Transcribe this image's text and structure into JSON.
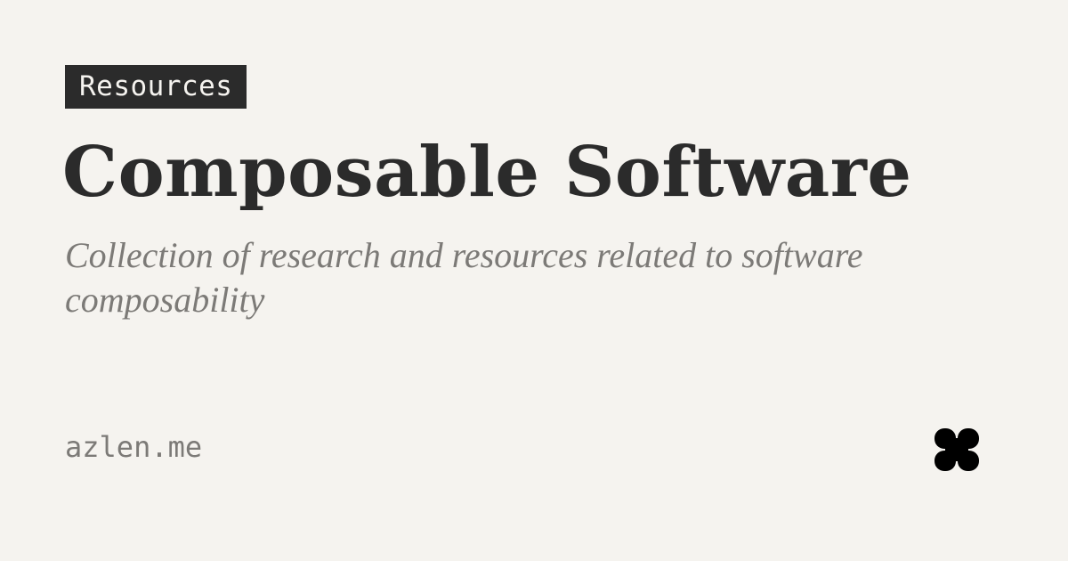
{
  "tag": {
    "label": "Resources"
  },
  "title": "Composable Software",
  "subtitle": "Collection of research and resources related to software composability",
  "footer": {
    "domain": "azlen.me"
  },
  "logo": {
    "icon": "four-petal-clover-icon",
    "color": "#000000"
  },
  "colors": {
    "background": "#f5f3ef",
    "text": "#2b2b2b",
    "muted": "#7c7a77"
  }
}
